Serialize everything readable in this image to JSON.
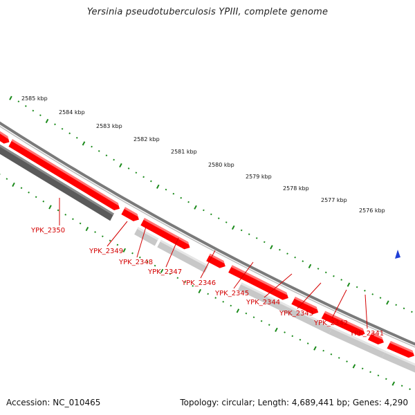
{
  "title": "Yersinia pseudotuberculosis YPIII, complete genome",
  "footer": {
    "accession": "Accession: NC_010465",
    "summary": "Topology: circular; Length: 4,689,441 bp; Genes: 4,290"
  },
  "colors": {
    "forward_gene": "#ff0000",
    "forward_gene_top": "#ff7777",
    "reverse_gene": "#c8c8c8",
    "reverse_gene_top": "#e6e6e6",
    "reverse_gene_dark": "#5a5a5a",
    "backbone": "#7a7a7a",
    "tick": "#1a8a1a",
    "label": "#d40000",
    "direction_arrow": "#1f3fd6"
  },
  "scale_labels": [
    "2585 kbp",
    "2584 kbp",
    "2583 kbp",
    "2582 kbp",
    "2581 kbp",
    "2580 kbp",
    "2579 kbp",
    "2578 kbp",
    "2577 kbp",
    "2576 kbp"
  ],
  "gene_labels": [
    "YPK_2350",
    "YPK_2349",
    "YPK_2348",
    "YPK_2347",
    "YPK_2346",
    "YPK_2345",
    "YPK_2344",
    "YPK_2343",
    "YPK_2342",
    "YPK_2341"
  ],
  "direction_arrow_icon": "triangle-arrow"
}
